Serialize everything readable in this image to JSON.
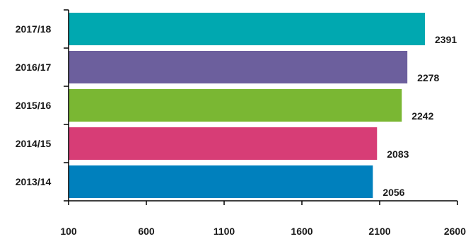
{
  "chart_data": {
    "type": "bar",
    "orientation": "horizontal",
    "categories": [
      "2017/18",
      "2016/17",
      "2015/16",
      "2014/15",
      "2013/14"
    ],
    "values": [
      2391,
      2278,
      2242,
      2083,
      2056
    ],
    "data_labels": [
      "2391",
      "2278",
      "2242",
      "2083",
      "2056"
    ],
    "bar_colors": [
      "#00A8B0",
      "#6C5F9D",
      "#7AB733",
      "#D73D76",
      "#0080BD"
    ],
    "xlim": [
      100,
      2600
    ],
    "xticks": [
      "100",
      "600",
      "1100",
      "1600",
      "2100",
      "2600"
    ],
    "title": "",
    "xlabel": "",
    "ylabel": "",
    "grid": false,
    "legend": "none"
  }
}
